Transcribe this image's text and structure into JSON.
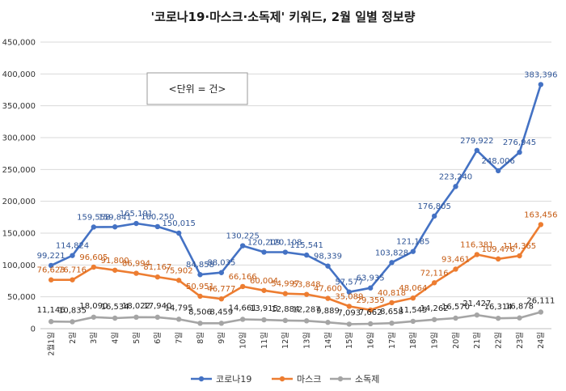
{
  "chart_data": {
    "type": "line",
    "title": "'코로나19·마스크·소독제' 키워드, 2월 일별 정보량",
    "unit_note": "<단위 = 건>",
    "categories": [
      "2월1일",
      "2일",
      "3일",
      "4일",
      "5일",
      "6일",
      "7일",
      "8일",
      "9일",
      "10일",
      "11일",
      "12일",
      "13일",
      "14일",
      "15일",
      "16일",
      "17일",
      "18일",
      "19일",
      "20일",
      "21일",
      "22일",
      "23일",
      "24일"
    ],
    "ylim": [
      0,
      450000
    ],
    "yticks": [
      0,
      50000,
      100000,
      150000,
      200000,
      250000,
      300000,
      350000,
      400000,
      450000
    ],
    "ytick_labels": [
      "0",
      "50,000",
      "100,000",
      "150,000",
      "200,000",
      "250,000",
      "300,000",
      "350,000",
      "400,000",
      "450,000"
    ],
    "grid": true,
    "legend_position": "bottom",
    "series": [
      {
        "name": "코로나19",
        "color": "#4472C4",
        "values": [
          99221,
          114824,
          159558,
          159841,
          165191,
          160250,
          150015,
          84858,
          88035,
          130225,
          120209,
          120108,
          115541,
          98339,
          57577,
          63935,
          103828,
          121185,
          176805,
          223240,
          279922,
          248006,
          276945,
          383396
        ],
        "labels": [
          "99,221",
          "114,824",
          "159,558",
          "159,841",
          "165,191",
          "160,250",
          "150,015",
          "84,858",
          "88,035",
          "130,225",
          "120,209",
          "120,108",
          "115,541",
          "98,339",
          "57,577",
          "63,935",
          "103,828",
          "121,185",
          "176,805",
          "223,240",
          "279,922",
          "248,006",
          "276,945",
          "383,396"
        ]
      },
      {
        "name": "마스크",
        "color": "#ED7D31",
        "values": [
          76623,
          76716,
          96605,
          91800,
          86994,
          81167,
          75902,
          50951,
          46777,
          66166,
          60004,
          54997,
          53848,
          47600,
          35089,
          29359,
          40818,
          48064,
          72116,
          93461,
          116381,
          109476,
          114365,
          163456
        ],
        "labels": [
          "76,623",
          "76,716",
          "96,605",
          "91,800",
          "86,994",
          "81,167",
          "75,902",
          "50,951",
          "46,777",
          "66,166",
          "60,004",
          "54,997",
          "53,848",
          "47,600",
          "35,089",
          "29,359",
          "40,818",
          "48,064",
          "72,116",
          "93,461",
          "116,381",
          "109,476",
          "114,365",
          "163,456"
        ]
      },
      {
        "name": "소독제",
        "color": "#A5A5A5",
        "values": [
          11146,
          10835,
          18090,
          16534,
          18022,
          17940,
          14795,
          8506,
          8459,
          14661,
          13915,
          12884,
          12287,
          9889,
          7093,
          7662,
          8658,
          11545,
          14262,
          16570,
          21427,
          16314,
          16878,
          26111
        ],
        "labels": [
          "11,146",
          "10,835",
          "18,090",
          "16,534",
          "18,022",
          "17,940",
          "14,795",
          "8,506",
          "8,459",
          "14,661",
          "13,915",
          "12,884",
          "12,287",
          "9,889",
          "7,093",
          "7,662",
          "8,658",
          "11,545",
          "14,262",
          "16,570",
          "21,427",
          "16,314",
          "16,878",
          "26,111"
        ]
      }
    ]
  },
  "colors": {
    "label_blue": "#2F5597",
    "label_orange": "#C55A11",
    "label_gray": "#1a1a1a",
    "grid": "#D9D9D9"
  }
}
